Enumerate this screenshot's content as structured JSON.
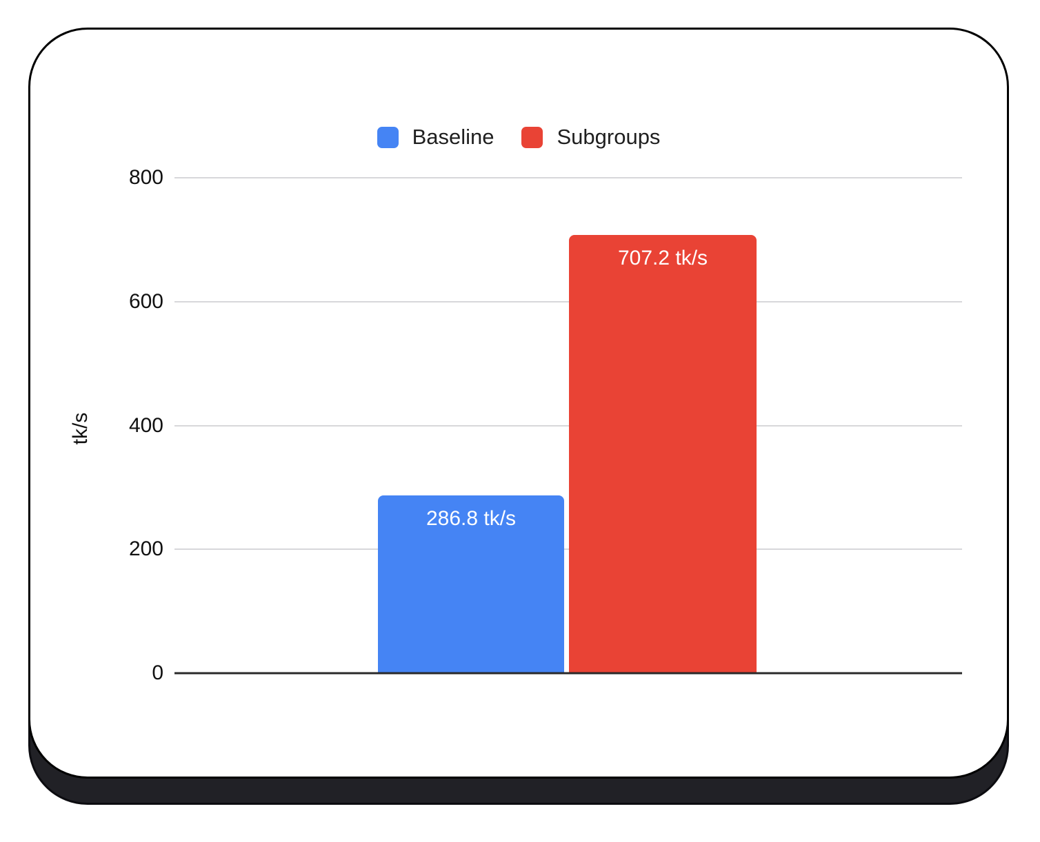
{
  "chart_data": {
    "type": "bar",
    "title": "",
    "xlabel": "",
    "ylabel": "tk/s",
    "ylim": [
      0,
      800
    ],
    "yticks": [
      0,
      200,
      400,
      600,
      800
    ],
    "grid": true,
    "legend_position": "top",
    "categories": [
      ""
    ],
    "series": [
      {
        "name": "Baseline",
        "color": "#4584F4",
        "values": [
          286.8
        ],
        "data_labels": [
          "286.8 tk/s"
        ]
      },
      {
        "name": "Subgroups",
        "color": "#E94335",
        "values": [
          707.2
        ],
        "data_labels": [
          "707.2 tk/s"
        ]
      }
    ],
    "colors": {
      "gridline": "#d7d7da",
      "axis_line": "#2a2a2a",
      "tick_text": "#111111",
      "legend_text": "#1f1f1f",
      "bar_label_text": "#ffffff",
      "card_background": "#ffffff",
      "card_border": "#000000",
      "card_shadow": "#212126"
    }
  }
}
